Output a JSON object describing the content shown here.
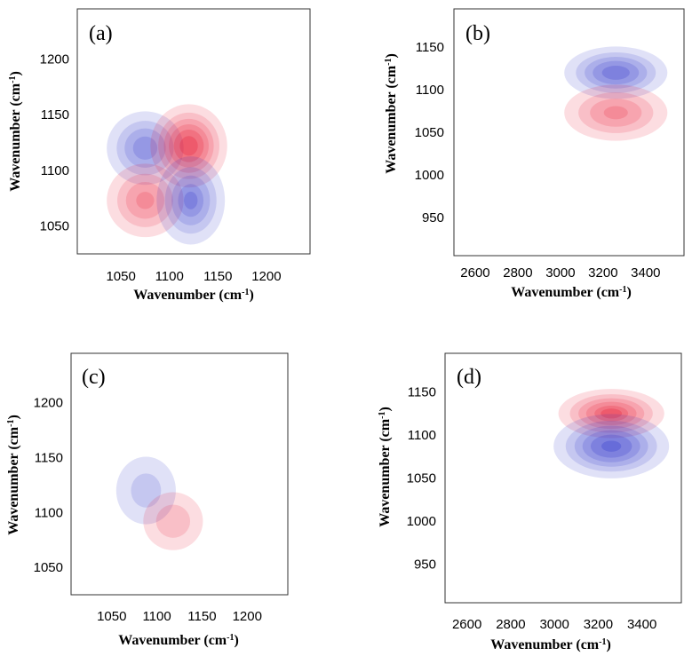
{
  "colors": {
    "positive": "#e8102a",
    "negative": "#2328c8",
    "frame": "#333333",
    "background": "#ffffff"
  },
  "chart_data": [
    {
      "panel_label": "(a)",
      "type": "heatmap",
      "subtype": "2D correlation contour map",
      "xlabel": "Wavenumber (cm",
      "ylabel": "Wavenumber (cm",
      "unit_superscript": "-1",
      "unit_close": ")",
      "xlim": [
        1005,
        1245
      ],
      "ylim": [
        1025,
        1245
      ],
      "xticks": [
        1050,
        1100,
        1150,
        1200
      ],
      "yticks": [
        1050,
        1100,
        1150,
        1200
      ],
      "grid": false,
      "peaks": [
        {
          "x": 1075,
          "y": 1120,
          "sx": 18,
          "sy": 15,
          "sign": -1,
          "amp": 0.7
        },
        {
          "x": 1120,
          "y": 1122,
          "sx": 18,
          "sy": 17,
          "sign": 1,
          "amp": 1.0
        },
        {
          "x": 1075,
          "y": 1073,
          "sx": 18,
          "sy": 15,
          "sign": 1,
          "amp": 0.65
        },
        {
          "x": 1122,
          "y": 1073,
          "sx": 16,
          "sy": 18,
          "sign": -1,
          "amp": 0.75
        }
      ]
    },
    {
      "panel_label": "(b)",
      "type": "heatmap",
      "subtype": "2D correlation contour map",
      "xlabel": "Wavenumber (cm",
      "ylabel": "Wavenumber (cm",
      "unit_superscript": "-1",
      "unit_close": ")",
      "xlim": [
        2500,
        3580
      ],
      "ylim": [
        905,
        1195
      ],
      "xticks": [
        2600,
        2800,
        3000,
        3200,
        3400
      ],
      "yticks": [
        950,
        1000,
        1050,
        1100,
        1150
      ],
      "grid": false,
      "peaks": [
        {
          "x": 3260,
          "y": 1120,
          "sx": 110,
          "sy": 14,
          "sign": -1,
          "amp": 0.85
        },
        {
          "x": 3260,
          "y": 1073,
          "sx": 110,
          "sy": 15,
          "sign": 1,
          "amp": 0.65
        }
      ]
    },
    {
      "panel_label": "(c)",
      "type": "heatmap",
      "subtype": "2D correlation contour map",
      "xlabel": "Wavenumber (cm",
      "ylabel": "Wavenumber (cm",
      "unit_superscript": "-1",
      "unit_close": ")",
      "xlim": [
        1005,
        1245
      ],
      "ylim": [
        1025,
        1245
      ],
      "xticks": [
        1050,
        1100,
        1150,
        1200
      ],
      "yticks": [
        1050,
        1100,
        1150,
        1200
      ],
      "grid": false,
      "peaks": [
        {
          "x": 1088,
          "y": 1120,
          "sx": 15,
          "sy": 14,
          "sign": -1,
          "amp": 0.38
        },
        {
          "x": 1118,
          "y": 1092,
          "sx": 15,
          "sy": 12,
          "sign": 1,
          "amp": 0.42
        }
      ]
    },
    {
      "panel_label": "(d)",
      "type": "heatmap",
      "subtype": "2D correlation contour map",
      "xlabel": "Wavenumber (cm",
      "ylabel": "Wavenumber (cm",
      "unit_superscript": "-1",
      "unit_close": ")",
      "xlim": [
        2500,
        3580
      ],
      "ylim": [
        905,
        1195
      ],
      "xticks": [
        2600,
        2800,
        3000,
        3200,
        3400
      ],
      "yticks": [
        950,
        1000,
        1050,
        1100,
        1150
      ],
      "grid": false,
      "peaks": [
        {
          "x": 3260,
          "y": 1125,
          "sx": 110,
          "sy": 13,
          "sign": 1,
          "amp": 0.9
        },
        {
          "x": 3260,
          "y": 1087,
          "sx": 120,
          "sy": 17,
          "sign": -1,
          "amp": 0.95
        }
      ]
    }
  ]
}
